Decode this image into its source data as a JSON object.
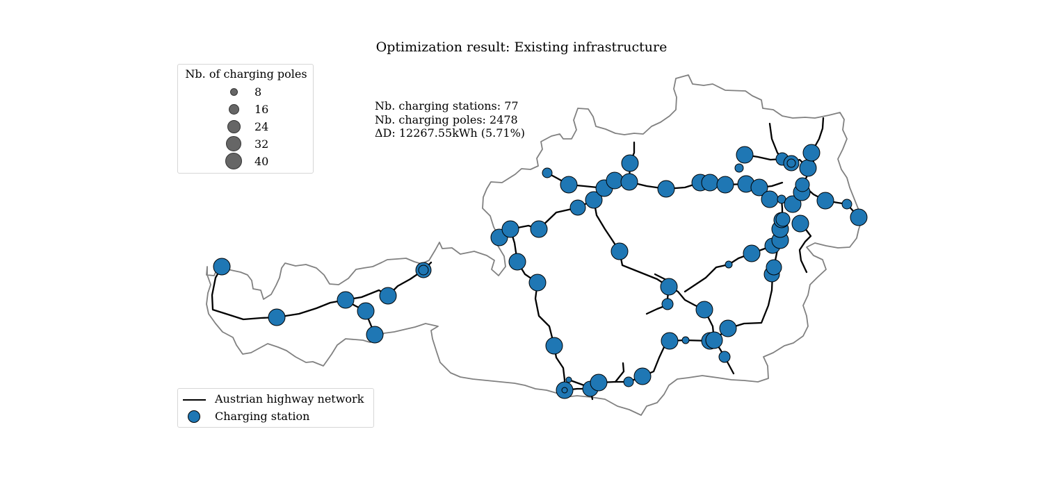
{
  "title": "Optimization result: Existing infrastructure",
  "stats": [
    "Nb. charging stations: 77",
    "Nb. charging poles: 2478",
    "ΔD: 12267.55kWh (5.71%)"
  ],
  "poles_legend": {
    "title": "Nb. of charging poles",
    "entries": [
      {
        "label": "8",
        "value": 8
      },
      {
        "label": "16",
        "value": 16
      },
      {
        "label": "24",
        "value": 24
      },
      {
        "label": "32",
        "value": 32
      },
      {
        "label": "40",
        "value": 40
      }
    ]
  },
  "network_legend": {
    "highway_label": "Austrian highway network",
    "station_label": "Charging station"
  },
  "colors": {
    "station": "#1f77b4",
    "border": "#808080",
    "highway": "#000000",
    "legend_dot": "#666666"
  }
}
